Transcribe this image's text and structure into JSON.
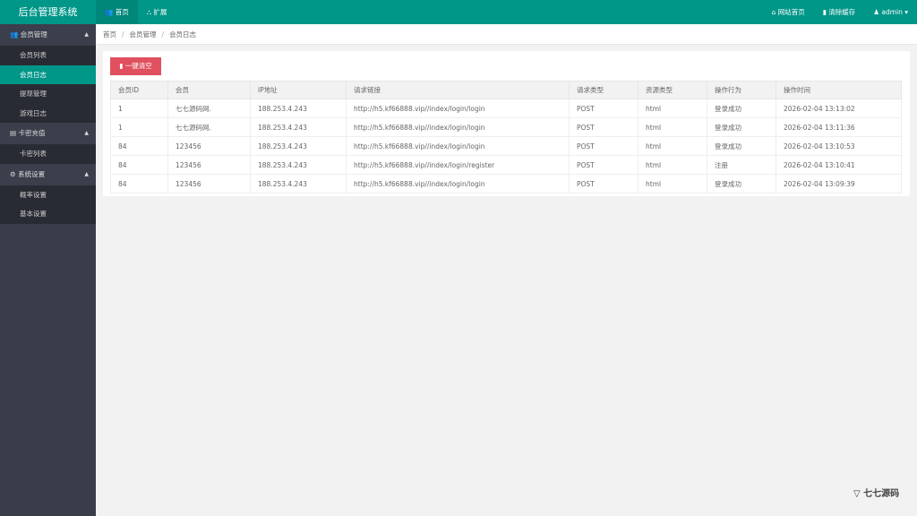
{
  "header": {
    "title": "后台管理系统",
    "nav": [
      {
        "label": "首页",
        "icon": "users-icon"
      },
      {
        "label": "扩展",
        "icon": "sitemap-icon"
      }
    ],
    "right": [
      {
        "label": "网站首页",
        "icon": "home-icon"
      },
      {
        "label": "清除缓存",
        "icon": "trash-icon"
      },
      {
        "label": "admin",
        "icon": "user-icon"
      }
    ]
  },
  "sidebar": [
    {
      "label": "会员管理",
      "icon": "users-icon",
      "items": [
        "会员列表",
        "会员日志",
        "提现管理",
        "游戏日志"
      ]
    },
    {
      "label": "卡密充值",
      "icon": "book-icon",
      "items": [
        "卡密列表"
      ]
    },
    {
      "label": "系统设置",
      "icon": "gear-icon",
      "items": [
        "概率设置",
        "基本设置"
      ]
    }
  ],
  "active_item": "会员日志",
  "breadcrumb": [
    "首页",
    "会员管理",
    "会员日志"
  ],
  "clear_button": "一键清空",
  "table": {
    "columns": [
      "会员ID",
      "会员",
      "IP地址",
      "请求链接",
      "请求类型",
      "资源类型",
      "操作行为",
      "操作时间"
    ],
    "rows": [
      [
        "1",
        "七七源码网.",
        "188.253.4.243",
        "http://h5.kf66888.vip//index/login/login",
        "POST",
        "html",
        "登录成功",
        "2026-02-04 13:13:02"
      ],
      [
        "1",
        "七七源码网.",
        "188.253.4.243",
        "http://h5.kf66888.vip//index/login/login",
        "POST",
        "html",
        "登录成功",
        "2026-02-04 13:11:36"
      ],
      [
        "84",
        "123456",
        "188.253.4.243",
        "http://h5.kf66888.vip//index/login/login",
        "POST",
        "html",
        "登录成功",
        "2026-02-04 13:10:53"
      ],
      [
        "84",
        "123456",
        "188.253.4.243",
        "http://h5.kf66888.vip//index/login/register",
        "POST",
        "html",
        "注册",
        "2026-02-04 13:10:41"
      ],
      [
        "84",
        "123456",
        "188.253.4.243",
        "http://h5.kf66888.vip//index/login/login",
        "POST",
        "html",
        "登录成功",
        "2026-02-04 13:09:39"
      ]
    ]
  },
  "watermark": "七七源码",
  "colors": {
    "brand": "#009688",
    "danger": "#e0505f",
    "sidebar": "#393d49"
  }
}
